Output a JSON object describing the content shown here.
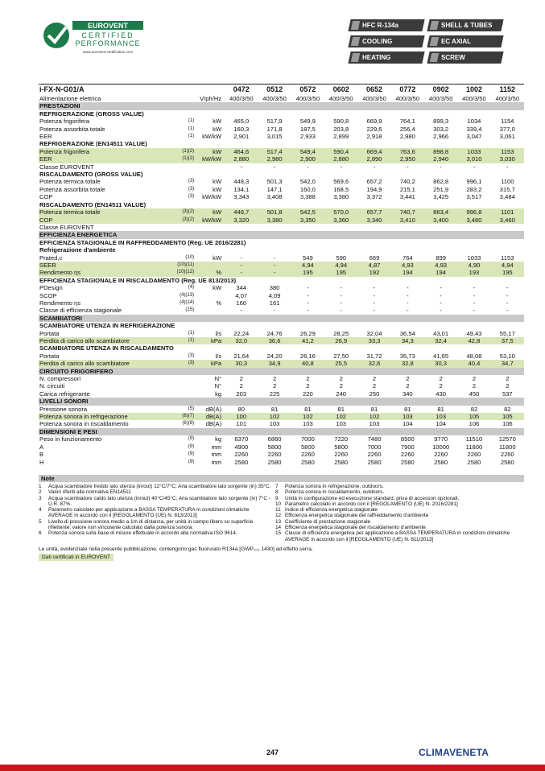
{
  "header": {
    "logo": {
      "brand": "EUROVENT",
      "line1": "CERTIFIED",
      "line2": "PERFORMANCE",
      "url": "www.eurovent-certification.com"
    },
    "badges": [
      "HFC R-134a",
      "SHELL & TUBES",
      "COOLING",
      "EC AXIAL",
      "HEATING",
      "SCREW"
    ]
  },
  "table": {
    "title": "i-FX-N-G01/A",
    "models": [
      "0472",
      "0512",
      "0572",
      "0602",
      "0652",
      "0772",
      "0902",
      "1002",
      "1152"
    ],
    "rows": [
      {
        "label": "Alimentazione elettrica",
        "unit": "V/ph/Hz",
        "values": [
          "400/3/50",
          "400/3/50",
          "400/3/50",
          "400/3/50",
          "400/3/50",
          "400/3/50",
          "400/3/50",
          "400/3/50",
          "400/3/50"
        ]
      },
      {
        "section": "PRESTAZIONI"
      },
      {
        "subsection": "REFRIGERAZIONE (GROSS VALUE)"
      },
      {
        "label": "Potenza frigorifera",
        "note": "(1)",
        "unit": "kW",
        "values": [
          "465,0",
          "517,9",
          "549,9",
          "590,8",
          "669,9",
          "764,1",
          "899,3",
          "1034",
          "1154"
        ]
      },
      {
        "label": "Potenza assorbita totale",
        "note": "(1)",
        "unit": "kW",
        "values": [
          "160,3",
          "171,8",
          "187,5",
          "203,8",
          "229,6",
          "256,4",
          "303,2",
          "339,4",
          "377,0"
        ]
      },
      {
        "label": "EER",
        "note": "(1)",
        "unit": "kW/kW",
        "values": [
          "2,901",
          "3,015",
          "2,933",
          "2,899",
          "2,918",
          "2,980",
          "2,966",
          "3,047",
          "3,061"
        ]
      },
      {
        "subsection": "REFRIGERAZIONE (EN14511 VALUE)"
      },
      {
        "label": "Potenza frigorifera",
        "note": "(1)(2)",
        "unit": "kW",
        "highlight": true,
        "values": [
          "464,6",
          "517,4",
          "549,4",
          "590,4",
          "669,4",
          "763,6",
          "898,8",
          "1033",
          "1153"
        ]
      },
      {
        "label": "EER",
        "note": "(1)(2)",
        "unit": "kW/kW",
        "highlight": true,
        "values": [
          "2,880",
          "2,980",
          "2,900",
          "2,880",
          "2,890",
          "2,950",
          "2,940",
          "3,010",
          "3,030"
        ]
      },
      {
        "label": "Classe EUROVENT",
        "values": [
          "-",
          "-",
          "-",
          "-",
          "-",
          "-",
          "-",
          "-",
          "-"
        ]
      },
      {
        "subsection": "RISCALDAMENTO (GROSS VALUE)"
      },
      {
        "label": "Potenza termica totale",
        "note": "(3)",
        "unit": "kW",
        "values": [
          "448,3",
          "501,3",
          "542,0",
          "569,6",
          "657,2",
          "740,2",
          "862,8",
          "996,1",
          "1100"
        ]
      },
      {
        "label": "Potenza assorbita totale",
        "note": "(3)",
        "unit": "kW",
        "values": [
          "134,1",
          "147,1",
          "160,0",
          "168,5",
          "194,9",
          "215,1",
          "251,9",
          "283,2",
          "315,7"
        ]
      },
      {
        "label": "COP",
        "note": "(3)",
        "unit": "kW/kW",
        "values": [
          "3,343",
          "3,408",
          "3,388",
          "3,380",
          "3,372",
          "3,441",
          "3,425",
          "3,517",
          "3,484"
        ]
      },
      {
        "subsection": "RISCALDAMENTO (EN14511 VALUE)"
      },
      {
        "label": "Potenza termica totale",
        "note": "(3)(2)",
        "unit": "kW",
        "highlight": true,
        "values": [
          "448,7",
          "501,8",
          "542,5",
          "570,0",
          "657,7",
          "740,7",
          "863,4",
          "996,8",
          "1101"
        ]
      },
      {
        "label": "COP",
        "note": "(3)(2)",
        "unit": "kW/kW",
        "highlight": true,
        "values": [
          "3,320",
          "3,380",
          "3,350",
          "3,360",
          "3,340",
          "3,410",
          "3,400",
          "3,480",
          "3,460"
        ]
      },
      {
        "label": "Classe EUROVENT"
      },
      {
        "section": "EFFICIENZA ENERGETICA"
      },
      {
        "subsection": "EFFICIENZA STAGIONALE IN RAFFREDDAMENTO (Reg. UE 2016/2281)"
      },
      {
        "subsection": "Refrigerazione d'ambiente"
      },
      {
        "label": "Prated,c",
        "note": "(10)",
        "unit": "kW",
        "values": [
          "-",
          "-",
          "549",
          "590",
          "669",
          "764",
          "899",
          "1033",
          "1153"
        ]
      },
      {
        "label": "SEER",
        "note": "(10)(11)",
        "highlight": true,
        "values": [
          "-",
          "-",
          "4,94",
          "4,94",
          "4,87",
          "4,93",
          "4,93",
          "4,90",
          "4,94"
        ]
      },
      {
        "label": "Rendimento ηs",
        "note": "(10)(12)",
        "unit": "%",
        "highlight": true,
        "values": [
          "-",
          "-",
          "195",
          "195",
          "192",
          "194",
          "194",
          "193",
          "195"
        ]
      },
      {
        "subsection": "EFFICIENZA STAGIONALE IN RISCALDAMENTO  (Reg. UE 813/2013)"
      },
      {
        "label": "PDesign",
        "note": "(4)",
        "unit": "kW",
        "values": [
          "344",
          "380",
          "-",
          "-",
          "-",
          "-",
          "-",
          "-",
          "-"
        ]
      },
      {
        "label": "SCOP",
        "note": "(4)(13)",
        "values": [
          "4,07",
          "4,09",
          "-",
          "-",
          "-",
          "-",
          "-",
          "-",
          "-"
        ]
      },
      {
        "label": "Rendimento ηs",
        "note": "(4)(14)",
        "unit": "%",
        "values": [
          "160",
          "161",
          "-",
          "-",
          "-",
          "-",
          "-",
          "-",
          "-"
        ]
      },
      {
        "label": "Classe di efficienza stagionale",
        "note": "(15)",
        "values": [
          "-",
          "-",
          "-",
          "-",
          "-",
          "-",
          "-",
          "-",
          "-"
        ]
      },
      {
        "section": "SCAMBIATORI"
      },
      {
        "subsection": "SCAMBIATORE UTENZA IN REFRIGERAZIONE"
      },
      {
        "label": "Portata",
        "note": "(1)",
        "unit": "l/s",
        "values": [
          "22,24",
          "24,76",
          "26,29",
          "28,25",
          "32,04",
          "36,54",
          "43,01",
          "49,43",
          "55,17"
        ]
      },
      {
        "label": "Perdita di carico allo scambiatore",
        "note": "(1)",
        "unit": "kPa",
        "highlight": true,
        "values": [
          "32,0",
          "36,6",
          "41,2",
          "26,9",
          "33,3",
          "34,3",
          "32,4",
          "42,8",
          "37,5"
        ]
      },
      {
        "subsection": "SCAMBIATORE UTENZA IN RISCALDAMENTO"
      },
      {
        "label": "Portata",
        "note": "(3)",
        "unit": "l/s",
        "values": [
          "21,64",
          "24,20",
          "26,16",
          "27,50",
          "31,72",
          "35,73",
          "41,65",
          "48,08",
          "53,10"
        ]
      },
      {
        "label": "Perdita di carico allo scambiatore",
        "note": "(3)",
        "unit": "kPa",
        "highlight": true,
        "values": [
          "30,3",
          "34,9",
          "40,8",
          "25,5",
          "32,6",
          "32,8",
          "30,3",
          "40,4",
          "34,7"
        ]
      },
      {
        "section": "CIRCUITO FRIGORIFERO"
      },
      {
        "label": "N. compressori",
        "unit": "N°",
        "values": [
          "2",
          "2",
          "2",
          "2",
          "2",
          "2",
          "2",
          "2",
          "2"
        ]
      },
      {
        "label": "N. circuiti",
        "unit": "N°",
        "values": [
          "2",
          "2",
          "2",
          "2",
          "2",
          "2",
          "2",
          "2",
          "2"
        ]
      },
      {
        "label": "Carica refrigerante",
        "unit": "kg",
        "values": [
          "203",
          "225",
          "220",
          "240",
          "250",
          "340",
          "430",
          "450",
          "537"
        ]
      },
      {
        "section": "LIVELLI SONORI"
      },
      {
        "label": "Pressione sonora",
        "note": "(5)",
        "unit": "dB(A)",
        "values": [
          "80",
          "81",
          "81",
          "81",
          "81",
          "81",
          "81",
          "82",
          "82"
        ]
      },
      {
        "label": "Potenza sonora in refrigerazione",
        "note": "(6)(7)",
        "unit": "dB(A)",
        "highlight": true,
        "values": [
          "100",
          "102",
          "102",
          "102",
          "102",
          "103",
          "103",
          "105",
          "105"
        ]
      },
      {
        "label": "Potenza sonora in riscaldamento",
        "note": "(6)(8)",
        "unit": "dB(A)",
        "values": [
          "101",
          "103",
          "103",
          "103",
          "103",
          "104",
          "104",
          "106",
          "106"
        ]
      },
      {
        "section": "DIMENSIONI E PESI"
      },
      {
        "label": "Peso in funzionamento",
        "note": "(9)",
        "unit": "kg",
        "values": [
          "6370",
          "6860",
          "7000",
          "7220",
          "7480",
          "8500",
          "9770",
          "11510",
          "12570"
        ]
      },
      {
        "label": "A",
        "note": "(9)",
        "unit": "mm",
        "values": [
          "4900",
          "5800",
          "5800",
          "5800",
          "7000",
          "7900",
          "10000",
          "11800",
          "11800"
        ]
      },
      {
        "label": "B",
        "note": "(9)",
        "unit": "mm",
        "values": [
          "2260",
          "2260",
          "2260",
          "2260",
          "2260",
          "2260",
          "2260",
          "2260",
          "2260"
        ]
      },
      {
        "label": "H",
        "note": "(9)",
        "unit": "mm",
        "values": [
          "2580",
          "2580",
          "2580",
          "2580",
          "2580",
          "2580",
          "2580",
          "2580",
          "2580"
        ]
      }
    ]
  },
  "notes": {
    "title": "Note",
    "left": [
      {
        "n": "1",
        "text": "Acqua scambiatore freddo lato utenza (in/out) 12°C/7°C; Aria scambiatore lato sorgente (in) 35°C."
      },
      {
        "n": "2",
        "text": "Valori riferiti alla normativa EN14511"
      },
      {
        "n": "3",
        "text": "Acqua scambiatore caldo lato utenza (in/out) 40°C/45°C; Aria scambiatore lato sorgente (in) 7°C - U.R. 87%."
      },
      {
        "n": "4",
        "text": "Parametro calcolato per applicazione a BASSA TEMPERATURA in condizioni climatiche AVERAGE in accordo con il [REGOLAMENTO (UE) N. 813/2013]"
      },
      {
        "n": "5",
        "text": "Livello di pressione sonora medio a 1m di distanza, per unità in campo libero su superficie riflettente; valore non vincolante calcolato dalla potenza sonora."
      },
      {
        "n": "6",
        "text": "Potenza sonora sulla base di misure effettuate in accordo alla normativa ISO 9614."
      }
    ],
    "right": [
      {
        "n": "7",
        "text": "Potenza sonora in refrigerazione, outdoors."
      },
      {
        "n": "8",
        "text": "Potenza sonora in riscaldamento, outdoors."
      },
      {
        "n": "9",
        "text": "Unità in configurazione ed esecuzione standard, priva di accessori opzionali."
      },
      {
        "n": "10",
        "text": "Parametro calcolato in accordo con il [REGOLAMENTO (UE) N. 2016/2281]"
      },
      {
        "n": "11",
        "text": "Indice di efficienza energetica stagionale"
      },
      {
        "n": "12",
        "text": "Efficienza energetica stagionale del raffreddamento d'ambiente"
      },
      {
        "n": "13",
        "text": "Coefficiente di prestazione stagionale"
      },
      {
        "n": "14",
        "text": "Efficienza energetica stagionale del riscaldamento d'ambiente"
      },
      {
        "n": "15",
        "text": "Classe di efficienza energetica per applicazione a BASSA TEMPERATURA in condizioni climatiche AVERAGE in accordo con il [REGOLAMENTO (UE) N. 811/2013]"
      }
    ],
    "footer": "Le unità, evidenziate nella presente pubblicazione, contengono gas fluorurato  R134a [GWP₁₀₀ 1430] ad effetto serra.",
    "certified": "Dati certificati in EUROVENT"
  },
  "page": {
    "number": "247",
    "brand": "CLIMAVENETA"
  }
}
